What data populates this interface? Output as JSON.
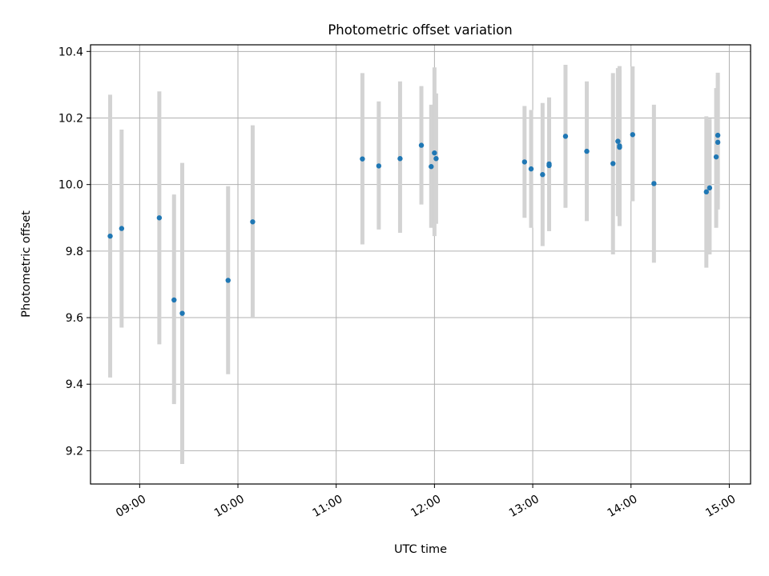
{
  "chart_data": {
    "type": "scatter",
    "title": "Photometric offset variation",
    "xlabel": "UTC time",
    "ylabel": "Photometric offset",
    "xlim": [
      "08:30",
      "15:13"
    ],
    "ylim": [
      9.1,
      10.42
    ],
    "x_ticks": [
      "09:00",
      "10:00",
      "11:00",
      "12:00",
      "13:00",
      "14:00",
      "15:00"
    ],
    "y_ticks": [
      9.2,
      9.4,
      9.6,
      9.8,
      10.0,
      10.2,
      10.4
    ],
    "grid": true,
    "colors": {
      "points": "#1f77b4",
      "error_bars": "#d3d3d3",
      "grid": "#b0b0b0"
    },
    "points": [
      {
        "x": "08:42",
        "y": 9.845,
        "low": 9.42,
        "high": 10.27
      },
      {
        "x": "08:49",
        "y": 9.868,
        "low": 9.57,
        "high": 10.165
      },
      {
        "x": "09:12",
        "y": 9.9,
        "low": 9.52,
        "high": 10.28
      },
      {
        "x": "09:21",
        "y": 9.653,
        "low": 9.34,
        "high": 9.97
      },
      {
        "x": "09:26",
        "y": 9.613,
        "low": 9.16,
        "high": 10.065
      },
      {
        "x": "09:54",
        "y": 9.712,
        "low": 9.43,
        "high": 9.995
      },
      {
        "x": "10:09",
        "y": 9.888,
        "low": 9.6,
        "high": 10.178
      },
      {
        "x": "11:16",
        "y": 10.077,
        "low": 9.82,
        "high": 10.335
      },
      {
        "x": "11:26",
        "y": 10.056,
        "low": 9.865,
        "high": 10.25
      },
      {
        "x": "11:39",
        "y": 10.078,
        "low": 9.855,
        "high": 10.31
      },
      {
        "x": "11:52",
        "y": 10.118,
        "low": 9.94,
        "high": 10.296
      },
      {
        "x": "11:58",
        "y": 10.054,
        "low": 9.87,
        "high": 10.24
      },
      {
        "x": "12:00",
        "y": 10.095,
        "low": 9.845,
        "high": 10.352
      },
      {
        "x": "12:01",
        "y": 10.078,
        "low": 9.882,
        "high": 10.274
      },
      {
        "x": "12:55",
        "y": 10.068,
        "low": 9.9,
        "high": 10.236
      },
      {
        "x": "12:59",
        "y": 10.047,
        "low": 9.87,
        "high": 10.224
      },
      {
        "x": "13:06",
        "y": 10.03,
        "low": 9.815,
        "high": 10.245
      },
      {
        "x": "13:10",
        "y": 10.062,
        "low": 9.86,
        "high": 10.262
      },
      {
        "x": "13:10",
        "y": 10.057,
        "low": 9.86,
        "high": 10.254
      },
      {
        "x": "13:20",
        "y": 10.145,
        "low": 9.93,
        "high": 10.36
      },
      {
        "x": "13:33",
        "y": 10.1,
        "low": 9.89,
        "high": 10.31
      },
      {
        "x": "13:49",
        "y": 10.063,
        "low": 9.79,
        "high": 10.335
      },
      {
        "x": "13:52",
        "y": 10.13,
        "low": 9.905,
        "high": 10.35
      },
      {
        "x": "13:53",
        "y": 10.112,
        "low": 9.875,
        "high": 10.356
      },
      {
        "x": "13:53",
        "y": 10.116,
        "low": 9.89,
        "high": 10.344
      },
      {
        "x": "14:01",
        "y": 10.15,
        "low": 9.95,
        "high": 10.355
      },
      {
        "x": "14:14",
        "y": 10.003,
        "low": 9.765,
        "high": 10.24
      },
      {
        "x": "14:46",
        "y": 9.978,
        "low": 9.75,
        "high": 10.205
      },
      {
        "x": "14:48",
        "y": 9.99,
        "low": 9.79,
        "high": 10.198
      },
      {
        "x": "14:52",
        "y": 10.083,
        "low": 9.87,
        "high": 10.29
      },
      {
        "x": "14:53",
        "y": 10.148,
        "low": 9.96,
        "high": 10.336
      },
      {
        "x": "14:53",
        "y": 10.127,
        "low": 9.925,
        "high": 10.328
      }
    ]
  }
}
